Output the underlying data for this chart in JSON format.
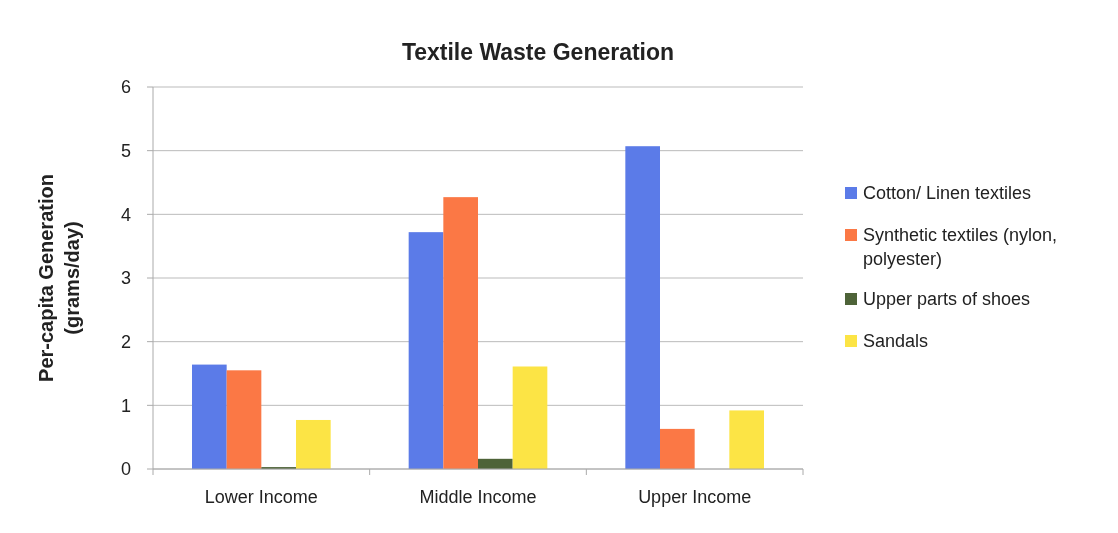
{
  "chart_data": {
    "type": "bar",
    "title": "Textile Waste Generation",
    "ylabel": "Per-capita Generation (grams/day)",
    "categories": [
      "Lower Income",
      "Middle Income",
      "Upper Income"
    ],
    "series": [
      {
        "name": "Cotton/ Linen textiles",
        "color": "#5b7be8",
        "values": [
          1.64,
          3.72,
          5.07
        ]
      },
      {
        "name": "Synthetic textiles (nylon, polyester)",
        "color": "#fb7845",
        "values": [
          1.55,
          4.27,
          0.63
        ]
      },
      {
        "name": "Upper parts of shoes",
        "color": "#4e6338",
        "values": [
          0.03,
          0.16,
          0
        ]
      },
      {
        "name": "Sandals",
        "color": "#fce445",
        "values": [
          0.77,
          1.61,
          0.92
        ]
      }
    ],
    "ylim": [
      0,
      6
    ],
    "yticks": [
      0,
      1,
      2,
      3,
      4,
      5,
      6
    ],
    "grid": "y",
    "legend": "right"
  }
}
